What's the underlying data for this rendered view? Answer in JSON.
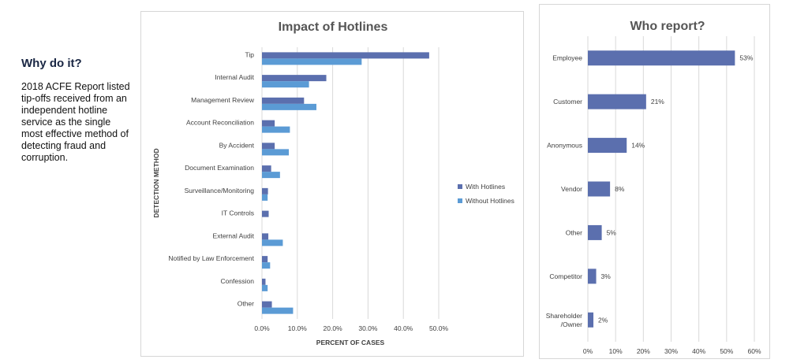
{
  "sidebar": {
    "heading": "Why do it?",
    "body": "2018 ACFE Report listed tip-offs received from an independent hotline service as the single most effective method of detecting fraud and corruption."
  },
  "chart_data": [
    {
      "type": "bar",
      "orientation": "horizontal",
      "title": "Impact of Hotlines",
      "xlabel": "PERCENT OF CASES",
      "ylabel": "DETECTION METHOD",
      "xlim": [
        0,
        50
      ],
      "x_ticks": [
        "0.0%",
        "10.0%",
        "20.0%",
        "30.0%",
        "40.0%",
        "50.0%"
      ],
      "grid": true,
      "legend_position": "right",
      "categories": [
        "Tip",
        "Internal Audit",
        "Management Review",
        "Account Reconciliation",
        "By Accident",
        "Document Examination",
        "Surveillance/Monitoring",
        "IT Controls",
        "External Audit",
        "Notified by Law Enforcement",
        "Confession",
        "Other"
      ],
      "series": [
        {
          "name": "With Hotlines",
          "color": "#5b6fae",
          "values": [
            47.3,
            18.2,
            11.9,
            3.6,
            3.6,
            2.6,
            1.7,
            1.9,
            1.8,
            1.6,
            1.0,
            2.8
          ]
        },
        {
          "name": "Without Hotlines",
          "color": "#5b9bd5",
          "values": [
            28.2,
            13.3,
            15.4,
            7.9,
            7.6,
            5.1,
            1.6,
            0.0,
            5.9,
            2.3,
            1.6,
            8.8
          ]
        }
      ]
    },
    {
      "type": "bar",
      "orientation": "horizontal",
      "title": "Who report?",
      "xlim": [
        0,
        60
      ],
      "x_ticks": [
        "0%",
        "10%",
        "20%",
        "30%",
        "40%",
        "50%",
        "60%"
      ],
      "grid": true,
      "categories": [
        "Employee",
        "Customer",
        "Anonymous",
        "Vendor",
        "Other",
        "Competitor",
        "Shareholder /Owner"
      ],
      "category_lines": [
        [
          "Employee"
        ],
        [
          "Customer"
        ],
        [
          "Anonymous"
        ],
        [
          "Vendor"
        ],
        [
          "Other"
        ],
        [
          "Competitor"
        ],
        [
          "Shareholder",
          "/Owner"
        ]
      ],
      "values": [
        53,
        21,
        14,
        8,
        5,
        3,
        2
      ],
      "data_labels": [
        "53%",
        "21%",
        "14%",
        "8%",
        "5%",
        "3%",
        "2%"
      ],
      "color": "#5b6fae"
    }
  ]
}
